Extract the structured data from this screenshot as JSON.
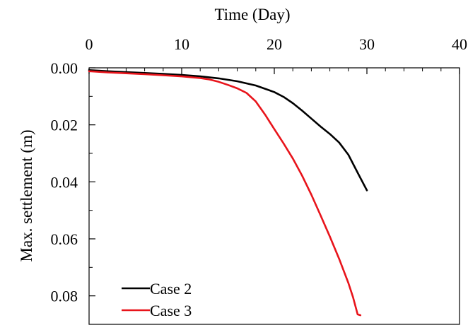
{
  "chart_data": {
    "type": "line",
    "xlabel": "Time (Day)",
    "ylabel": "Max. settlement (m)",
    "x_axis_position": "top",
    "y_inverted": true,
    "xlim": [
      0,
      40
    ],
    "ylim": [
      0,
      0.09
    ],
    "x_ticks": [
      0,
      10,
      20,
      30,
      40
    ],
    "x_tick_labels": [
      "0",
      "10",
      "20",
      "30",
      "40"
    ],
    "y_ticks": [
      0,
      0.02,
      0.04,
      0.06,
      0.08
    ],
    "y_tick_labels": [
      "0.00",
      "0.02",
      "0.04",
      "0.06",
      "0.08"
    ],
    "grid": false,
    "legend_position": "bottom-left",
    "series": [
      {
        "name": "Case 2",
        "color": "#000000",
        "x": [
          0,
          2,
          4,
          6,
          8,
          10,
          12,
          14,
          16,
          18,
          20,
          21,
          22,
          23,
          24,
          25,
          26,
          27,
          28,
          29,
          30
        ],
        "y": [
          0.0008,
          0.0012,
          0.0015,
          0.0018,
          0.0021,
          0.0025,
          0.003,
          0.0037,
          0.0047,
          0.0062,
          0.0085,
          0.0102,
          0.0124,
          0.015,
          0.0178,
          0.0206,
          0.0232,
          0.0262,
          0.0305,
          0.0368,
          0.043
        ]
      },
      {
        "name": "Case 3",
        "color": "#e8141b",
        "x": [
          0,
          2,
          4,
          6,
          8,
          10,
          12,
          13,
          14,
          15,
          16,
          17,
          18,
          19,
          20,
          21,
          22,
          23,
          24,
          25,
          26,
          27,
          28,
          28.5,
          29,
          29.3
        ],
        "y": [
          0.0012,
          0.0016,
          0.0019,
          0.0022,
          0.0026,
          0.003,
          0.0036,
          0.0041,
          0.0049,
          0.006,
          0.0072,
          0.0088,
          0.0118,
          0.0164,
          0.0215,
          0.0265,
          0.0318,
          0.0378,
          0.0445,
          0.0518,
          0.0592,
          0.067,
          0.0755,
          0.0805,
          0.0865,
          0.0868
        ]
      }
    ]
  }
}
